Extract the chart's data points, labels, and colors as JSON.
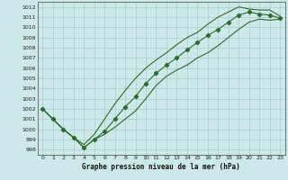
{
  "title": "Graphe pression niveau de la mer (hPa)",
  "xlim": [
    -0.5,
    23.5
  ],
  "ylim": [
    997.5,
    1012.5
  ],
  "yticks": [
    998,
    999,
    1000,
    1001,
    1002,
    1003,
    1004,
    1005,
    1006,
    1007,
    1008,
    1009,
    1010,
    1011,
    1012
  ],
  "xticks": [
    0,
    1,
    2,
    3,
    4,
    5,
    6,
    7,
    8,
    9,
    10,
    11,
    12,
    13,
    14,
    15,
    16,
    17,
    18,
    19,
    20,
    21,
    22,
    23
  ],
  "background_color": "#cce8e8",
  "grid_color": "#aacccc",
  "line_color": "#2d6a2d",
  "y_lower": [
    1002,
    1001,
    1000,
    999.2,
    998.2,
    999.0,
    999.5,
    1000.2,
    1001.0,
    1001.8,
    1003.0,
    1004.3,
    1005.2,
    1005.8,
    1006.3,
    1007.0,
    1007.5,
    1008.2,
    1009.0,
    1009.8,
    1010.5,
    1010.8,
    1010.7,
    1010.8
  ],
  "y_upper": [
    1002,
    1001,
    1000,
    999.2,
    998.5,
    999.5,
    1001.0,
    1002.5,
    1003.8,
    1005.0,
    1006.0,
    1006.8,
    1007.5,
    1008.3,
    1009.0,
    1009.5,
    1010.3,
    1011.0,
    1011.5,
    1012.0,
    1011.8,
    1011.7,
    1011.7,
    1011.1
  ],
  "y_mid": [
    1002,
    1001,
    1000,
    999.2,
    998.2,
    999.0,
    999.8,
    1001.0,
    1002.2,
    1003.2,
    1004.5,
    1005.5,
    1006.3,
    1007.0,
    1007.8,
    1008.5,
    1009.2,
    1009.8,
    1010.5,
    1011.2,
    1011.5,
    1011.3,
    1011.2,
    1010.9
  ]
}
